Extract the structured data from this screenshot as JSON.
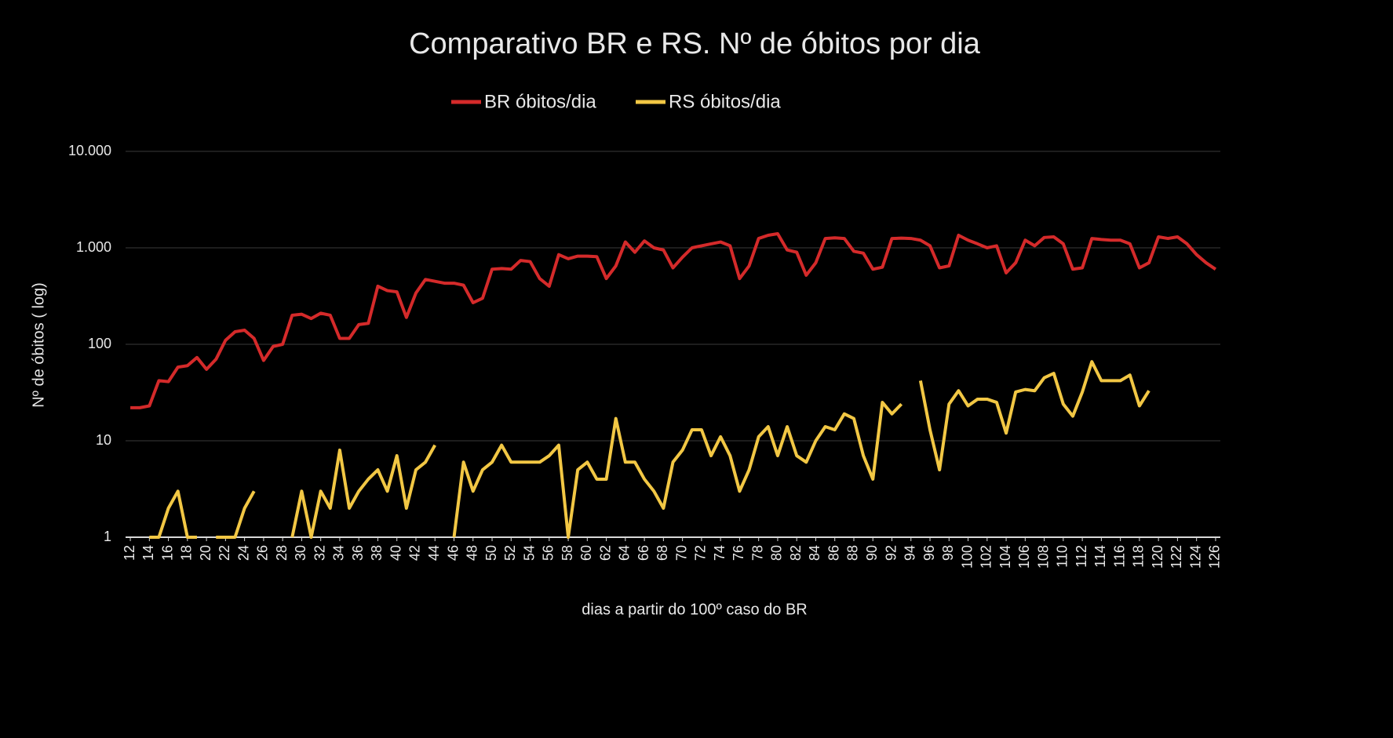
{
  "chart_data": {
    "type": "line",
    "title": "Comparativo BR e RS. Nº de óbitos por dia",
    "x_label": "dias a partir do 100º caso do BR",
    "y_label": "Nº de óbitos ( log)",
    "x": [
      12,
      13,
      14,
      15,
      16,
      17,
      18,
      19,
      20,
      21,
      22,
      23,
      24,
      25,
      26,
      27,
      28,
      29,
      30,
      31,
      32,
      33,
      34,
      35,
      36,
      37,
      38,
      39,
      40,
      41,
      42,
      43,
      44,
      45,
      46,
      47,
      48,
      49,
      50,
      51,
      52,
      53,
      54,
      55,
      56,
      57,
      58,
      59,
      60,
      61,
      62,
      63,
      64,
      65,
      66,
      67,
      68,
      69,
      70,
      71,
      72,
      73,
      74,
      75,
      76,
      77,
      78,
      79,
      80,
      81,
      82,
      83,
      84,
      85,
      86,
      87,
      88,
      89,
      90,
      91,
      92,
      93,
      94,
      95,
      96,
      97,
      98,
      99,
      100,
      101,
      102,
      103,
      104,
      105,
      106,
      107,
      108,
      109,
      110,
      111,
      112,
      113,
      114,
      115,
      116,
      117,
      118,
      119,
      120,
      121,
      122,
      123,
      124,
      125,
      126
    ],
    "xlim": [
      11.5,
      126.5
    ],
    "xticks": [
      12,
      14,
      16,
      18,
      20,
      22,
      24,
      26,
      28,
      30,
      32,
      34,
      36,
      38,
      40,
      42,
      44,
      46,
      48,
      50,
      52,
      54,
      56,
      58,
      60,
      62,
      64,
      66,
      68,
      70,
      72,
      74,
      76,
      78,
      80,
      82,
      84,
      86,
      88,
      90,
      92,
      94,
      96,
      98,
      100,
      102,
      104,
      106,
      108,
      110,
      112,
      114,
      116,
      118,
      120,
      122,
      124,
      126
    ],
    "ylim": [
      1,
      10000
    ],
    "log_scale": true,
    "grid": true,
    "legend": "top",
    "yticks": [
      1,
      10,
      100,
      {
        "value": 1000,
        "label": "1.000"
      },
      {
        "value": 10000,
        "label": "10.000"
      }
    ],
    "series": [
      {
        "name": "BR óbitos/dia",
        "color": "#d42a2a",
        "values": [
          22,
          22,
          23,
          42,
          41,
          58,
          60,
          73,
          55,
          70,
          110,
          135,
          140,
          115,
          68,
          95,
          100,
          200,
          205,
          185,
          210,
          200,
          115,
          115,
          160,
          165,
          400,
          360,
          350,
          190,
          340,
          470,
          450,
          430,
          430,
          410,
          270,
          300,
          600,
          610,
          600,
          740,
          720,
          480,
          400,
          850,
          770,
          820,
          820,
          810,
          480,
          650,
          1150,
          900,
          1180,
          1000,
          950,
          620,
          800,
          1000,
          1050,
          1100,
          1150,
          1050,
          480,
          650,
          1250,
          1350,
          1400,
          950,
          900,
          520,
          700,
          1250,
          1270,
          1250,
          920,
          880,
          600,
          630,
          1250,
          1260,
          1250,
          1200,
          1050,
          620,
          650,
          1350,
          1200,
          1100,
          1000,
          1050,
          550,
          700,
          1200,
          1050,
          1280,
          1300,
          1100,
          600,
          620,
          1250,
          1220,
          1200,
          1200,
          1100,
          620,
          700,
          1300,
          1250,
          1300,
          1100,
          850,
          700,
          600
        ]
      },
      {
        "name": "RS óbitos/dia",
        "color": "#f2c744",
        "values": [
          null,
          null,
          1,
          1,
          2,
          3,
          1,
          1,
          null,
          1,
          1,
          1,
          2,
          3,
          null,
          null,
          null,
          1,
          3,
          1,
          3,
          2,
          8,
          2,
          3,
          4,
          5,
          3,
          7,
          2,
          5,
          6,
          9,
          null,
          1,
          6,
          3,
          5,
          6,
          9,
          6,
          6,
          6,
          6,
          7,
          9,
          1,
          5,
          6,
          4,
          4,
          17,
          6,
          6,
          4,
          3,
          2,
          6,
          8,
          13,
          13,
          7,
          11,
          7,
          3,
          5,
          11,
          14,
          7,
          14,
          7,
          6,
          10,
          14,
          13,
          19,
          17,
          7,
          4,
          25,
          19,
          24,
          null,
          42,
          13,
          5,
          24,
          33,
          23,
          27,
          27,
          25,
          12,
          32,
          34,
          33,
          45,
          50,
          24,
          18,
          32,
          66,
          42,
          42,
          42,
          48,
          23,
          33,
          null,
          null,
          null,
          null,
          null,
          null,
          null
        ]
      }
    ]
  }
}
